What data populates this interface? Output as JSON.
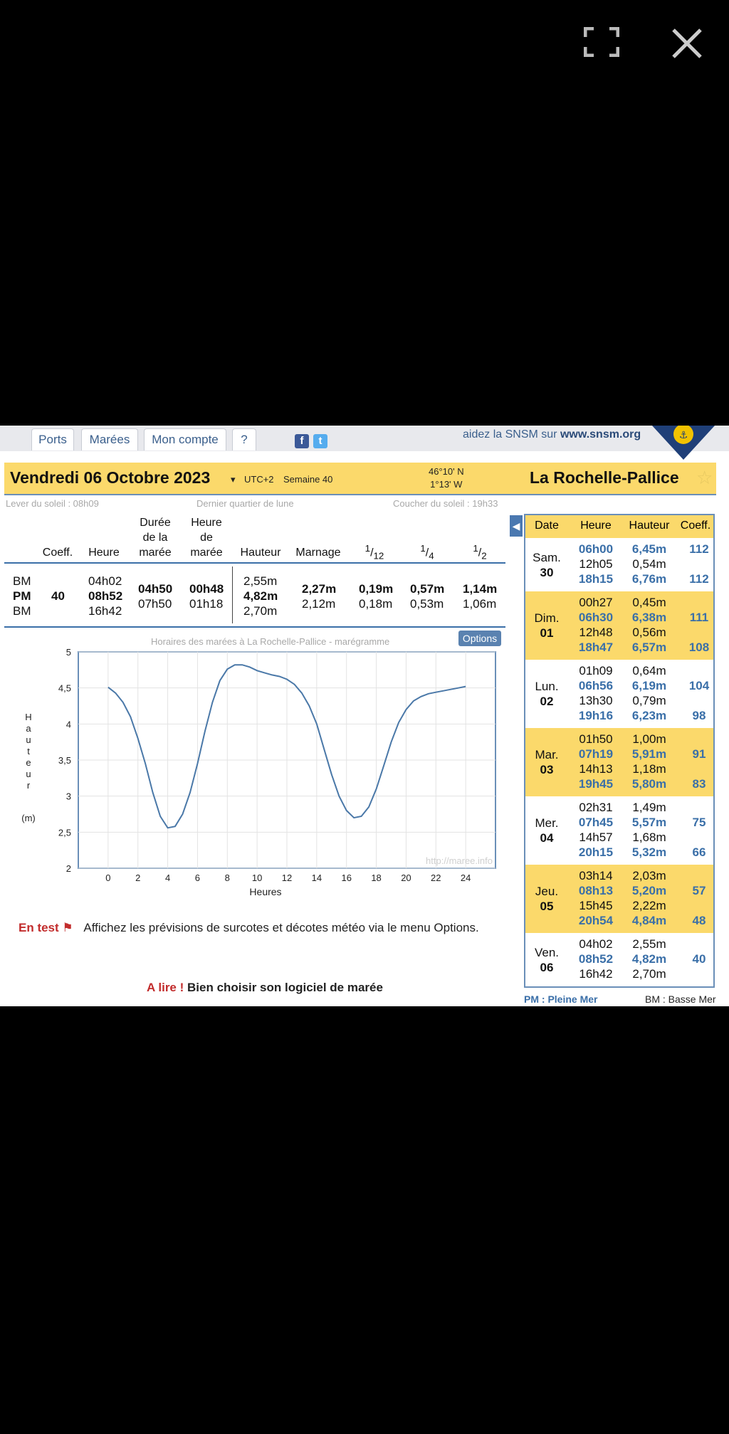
{
  "nav": {
    "tabs": [
      "Ports",
      "Marées",
      "Mon compte",
      "?"
    ],
    "snsm_text": "aidez la SNSM sur",
    "snsm_link": "www.snsm.org"
  },
  "header": {
    "date": "Vendredi 06 Octobre 2023",
    "utc": "UTC+2",
    "week": "Semaine 40",
    "lat": "46°10' N",
    "lon": "1°13' W",
    "place": "La Rochelle-Pallice",
    "sunrise": "Lever du soleil : 08h09",
    "moon": "Dernier quartier de lune",
    "sunset": "Coucher du soleil : 19h33"
  },
  "table": {
    "headers": {
      "coeff": "Coeff.",
      "heure": "Heure",
      "duree": [
        "Durée",
        "de la",
        "marée"
      ],
      "heure_maree": [
        "Heure",
        "de",
        "marée"
      ],
      "hauteur": "Hauteur",
      "marnage": "Marnage",
      "twelfth_num": "1",
      "twelfth_den": "12",
      "quarter_num": "1",
      "quarter_den": "4",
      "half_num": "1",
      "half_den": "2"
    },
    "rows": [
      {
        "type": "BM",
        "time": "04h02",
        "height": "2,55m"
      },
      {
        "type": "PM",
        "coeff": "40",
        "time": "08h52",
        "duration": "04h50",
        "tide_hour": "00h48",
        "height": "4,82m",
        "range": "2,27m",
        "t12": "0,19m",
        "t4": "0,57m",
        "t2": "1,14m"
      },
      {
        "type": "BM",
        "time": "16h42",
        "duration": "07h50",
        "tide_hour": "01h18",
        "height": "2,70m",
        "range": "2,12m",
        "t12": "0,18m",
        "t4": "0,53m",
        "t2": "1,06m"
      }
    ]
  },
  "chart_data": {
    "type": "line",
    "title": "Horaires des marées à La Rochelle-Pallice - marégramme",
    "xlabel": "Heures",
    "ylabel": "Hauteur (m)",
    "xlim": [
      -2,
      26
    ],
    "ylim": [
      2,
      5
    ],
    "xticks": [
      "0",
      "2",
      "4",
      "6",
      "8",
      "10",
      "12",
      "14",
      "16",
      "18",
      "20",
      "22",
      "24"
    ],
    "yticks": [
      "2",
      "2,5",
      "3",
      "3,5",
      "4",
      "4,5",
      "5"
    ],
    "watermark": "http://maree.info",
    "grid": true,
    "x": [
      0,
      0.5,
      1,
      1.5,
      2,
      2.5,
      3,
      3.5,
      4,
      4.5,
      5,
      5.5,
      6,
      6.5,
      7,
      7.5,
      8,
      8.5,
      9,
      9.5,
      10,
      10.5,
      11,
      11.5,
      12,
      12.5,
      13,
      13.5,
      14,
      14.5,
      15,
      15.5,
      16,
      16.5,
      17,
      17.5,
      18,
      18.5,
      19,
      19.5,
      20,
      20.5,
      21,
      21.5,
      22,
      22.5,
      23,
      23.5,
      24
    ],
    "y": [
      4.51,
      4.43,
      4.3,
      4.1,
      3.8,
      3.45,
      3.05,
      2.72,
      2.56,
      2.58,
      2.75,
      3.05,
      3.45,
      3.9,
      4.3,
      4.6,
      4.76,
      4.82,
      4.82,
      4.79,
      4.74,
      4.71,
      4.68,
      4.66,
      4.62,
      4.55,
      4.43,
      4.25,
      4.0,
      3.65,
      3.3,
      3.0,
      2.8,
      2.7,
      2.72,
      2.85,
      3.1,
      3.42,
      3.75,
      4.02,
      4.2,
      4.32,
      4.38,
      4.42,
      4.44,
      4.46,
      4.48,
      4.5,
      4.52
    ]
  },
  "notice": {
    "label": "En test",
    "text": "Affichez les prévisions de surcotes et décotes météo via le menu Options."
  },
  "link": {
    "label": "A lire !",
    "text": "Bien choisir son logiciel de marée"
  },
  "options_label": "Options",
  "sidebar": {
    "headers": [
      "Date",
      "Heure",
      "Hauteur",
      "Coeff."
    ],
    "days": [
      {
        "day": "Sam.",
        "num": "30",
        "bg": "#ffffff",
        "tides": [
          {
            "t": "06h00",
            "h": "6,45m",
            "c": "112",
            "pm": true
          },
          {
            "t": "12h05",
            "h": "0,54m",
            "c": "",
            "pm": false
          },
          {
            "t": "18h15",
            "h": "6,76m",
            "c": "112",
            "pm": true
          }
        ]
      },
      {
        "day": "Dim.",
        "num": "01",
        "bg": "#fbd96b",
        "tides": [
          {
            "t": "00h27",
            "h": "0,45m",
            "c": "",
            "pm": false
          },
          {
            "t": "06h30",
            "h": "6,38m",
            "c": "111",
            "pm": true
          },
          {
            "t": "12h48",
            "h": "0,56m",
            "c": "",
            "pm": false
          },
          {
            "t": "18h47",
            "h": "6,57m",
            "c": "108",
            "pm": true
          }
        ]
      },
      {
        "day": "Lun.",
        "num": "02",
        "bg": "#ffffff",
        "tides": [
          {
            "t": "01h09",
            "h": "0,64m",
            "c": "",
            "pm": false
          },
          {
            "t": "06h56",
            "h": "6,19m",
            "c": "104",
            "pm": true
          },
          {
            "t": "13h30",
            "h": "0,79m",
            "c": "",
            "pm": false
          },
          {
            "t": "19h16",
            "h": "6,23m",
            "c": "98",
            "pm": true
          }
        ]
      },
      {
        "day": "Mar.",
        "num": "03",
        "bg": "#fbd96b",
        "tides": [
          {
            "t": "01h50",
            "h": "1,00m",
            "c": "",
            "pm": false
          },
          {
            "t": "07h19",
            "h": "5,91m",
            "c": "91",
            "pm": true
          },
          {
            "t": "14h13",
            "h": "1,18m",
            "c": "",
            "pm": false
          },
          {
            "t": "19h45",
            "h": "5,80m",
            "c": "83",
            "pm": true
          }
        ]
      },
      {
        "day": "Mer.",
        "num": "04",
        "bg": "#ffffff",
        "tides": [
          {
            "t": "02h31",
            "h": "1,49m",
            "c": "",
            "pm": false
          },
          {
            "t": "07h45",
            "h": "5,57m",
            "c": "75",
            "pm": true
          },
          {
            "t": "14h57",
            "h": "1,68m",
            "c": "",
            "pm": false
          },
          {
            "t": "20h15",
            "h": "5,32m",
            "c": "66",
            "pm": true
          }
        ]
      },
      {
        "day": "Jeu.",
        "num": "05",
        "bg": "#fbd96b",
        "tides": [
          {
            "t": "03h14",
            "h": "2,03m",
            "c": "",
            "pm": false
          },
          {
            "t": "08h13",
            "h": "5,20m",
            "c": "57",
            "pm": true
          },
          {
            "t": "15h45",
            "h": "2,22m",
            "c": "",
            "pm": false
          },
          {
            "t": "20h54",
            "h": "4,84m",
            "c": "48",
            "pm": true
          }
        ]
      },
      {
        "day": "Ven.",
        "num": "06",
        "bg": "#ffffff",
        "tides": [
          {
            "t": "04h02",
            "h": "2,55m",
            "c": "",
            "pm": false
          },
          {
            "t": "08h52",
            "h": "4,82m",
            "c": "40",
            "pm": true
          },
          {
            "t": "16h42",
            "h": "2,70m",
            "c": "",
            "pm": false
          }
        ]
      }
    ],
    "legend_pm": "PM : Pleine Mer",
    "legend_bm": "BM : Basse Mer"
  }
}
